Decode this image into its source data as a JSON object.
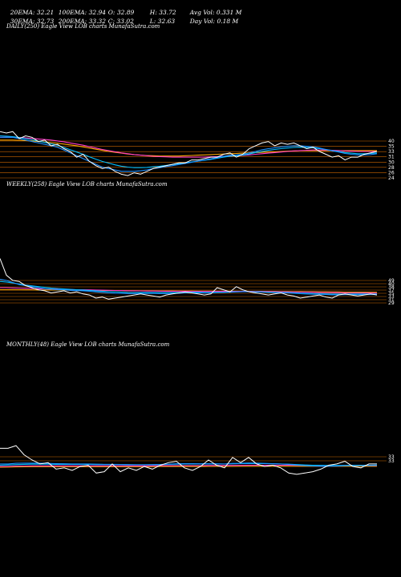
{
  "header": {
    "row1": {
      "ema20": "20EMA: 32.21",
      "ema100": "100EMA: 32.94",
      "open": "O: 32.89",
      "high": "H: 33.72",
      "avgvol": "Avg Vol: 0.331 M"
    },
    "row2": {
      "ema30": "30EMA: 32.73",
      "ema200": "200EMA: 33.32",
      "close": "C: 33.02",
      "low": "L: 32.63",
      "dayvol": "Day Vol: 0.18 M"
    }
  },
  "panels": {
    "daily_label": "DAILY(250) Eagle   View  LOB charts MunafaSutra.com",
    "weekly_label": "WEEKLY(258) Eagle   View  LOB charts MunafaSutra.com",
    "monthly_label": "MONTHLY(48) Eagle   View  LOB charts MunafaSutra.com"
  },
  "colors": {
    "price": "#ffffff",
    "ema20": "#1e90ff",
    "ema30": "#00bfff",
    "ema100": "#ff3cc8",
    "ema200": "#ffa500",
    "grid": "#cc6600"
  },
  "chart_data": [
    {
      "type": "line",
      "name": "daily",
      "ylim": [
        22,
        44
      ],
      "ticks": [
        "40",
        "35",
        "33",
        "31",
        "30",
        "28",
        "26",
        "24"
      ],
      "series": [
        {
          "name": "price",
          "values": [
            40,
            39.5,
            40,
            37.5,
            38.5,
            38,
            36.5,
            37,
            35,
            35.5,
            34,
            33,
            31,
            32,
            29.5,
            28,
            27,
            27.5,
            26,
            25,
            24.5,
            25.5,
            25,
            26,
            27,
            27.5,
            28,
            28.5,
            29,
            29,
            30,
            30,
            30.5,
            31,
            31,
            32,
            32.5,
            31,
            32,
            34,
            35,
            36,
            36.5,
            35,
            36,
            35.5,
            36,
            35,
            34,
            34.5,
            33,
            32,
            31,
            31.5,
            30,
            31,
            31,
            32,
            32.5,
            33
          ]
        },
        {
          "name": "ema20",
          "values": [
            38,
            38,
            38,
            37.5,
            37,
            36.5,
            36,
            35.5,
            35,
            34.5,
            33.5,
            32.5,
            31.5,
            30.5,
            29.5,
            28.5,
            27.5,
            27,
            26.5,
            26,
            26,
            26,
            26.2,
            26.5,
            27,
            27.3,
            27.7,
            28,
            28.4,
            28.8,
            29.2,
            29.6,
            30,
            30.4,
            30.8,
            31.3,
            31.7,
            31.8,
            32,
            32.5,
            33,
            33.6,
            34,
            34.3,
            34.6,
            34.8,
            35,
            35,
            34.8,
            34.6,
            34.2,
            33.7,
            33.2,
            32.8,
            32.3,
            32,
            31.8,
            31.8,
            31.9,
            32.2
          ]
        },
        {
          "name": "ema30",
          "values": [
            38.5,
            38.4,
            38.2,
            37.9,
            37.5,
            37.1,
            36.6,
            36.2,
            35.7,
            35.2,
            34.4,
            33.6,
            32.8,
            32,
            31.1,
            30.3,
            29.5,
            28.9,
            28.3,
            27.8,
            27.5,
            27.3,
            27.3,
            27.4,
            27.6,
            27.8,
            28.1,
            28.4,
            28.7,
            29,
            29.3,
            29.6,
            29.9,
            30.2,
            30.6,
            31,
            31.3,
            31.5,
            31.7,
            32.1,
            32.6,
            33,
            33.4,
            33.7,
            34,
            34.2,
            34.4,
            34.5,
            34.4,
            34.3,
            34,
            33.7,
            33.3,
            33,
            32.6,
            32.4,
            32.2,
            32.2,
            32.3,
            32.5
          ]
        },
        {
          "name": "ema100",
          "values": [
            38,
            38,
            38,
            37.9,
            37.8,
            37.6,
            37.4,
            37.2,
            37,
            36.7,
            36.4,
            36,
            35.6,
            35.2,
            34.7,
            34.2,
            33.7,
            33.3,
            32.9,
            32.5,
            32.2,
            31.9,
            31.7,
            31.5,
            31.3,
            31.2,
            31.1,
            31,
            31,
            31,
            31,
            31,
            31,
            31.1,
            31.2,
            31.3,
            31.4,
            31.5,
            31.6,
            31.8,
            32,
            32.2,
            32.4,
            32.6,
            32.8,
            33,
            33.2,
            33.3,
            33.4,
            33.5,
            33.5,
            33.5,
            33.4,
            33.3,
            33.2,
            33.1,
            33,
            33,
            33,
            33
          ]
        },
        {
          "name": "ema200",
          "values": [
            37,
            37,
            37,
            36.9,
            36.8,
            36.7,
            36.5,
            36.3,
            36.1,
            35.9,
            35.6,
            35.3,
            35,
            34.6,
            34.2,
            33.8,
            33.4,
            33,
            32.7,
            32.4,
            32.1,
            31.9,
            31.7,
            31.6,
            31.5,
            31.4,
            31.4,
            31.4,
            31.4,
            31.5,
            31.6,
            31.7,
            31.8,
            31.9,
            32,
            32.1,
            32.2,
            32.3,
            32.4,
            32.5,
            32.6,
            32.7,
            32.8,
            32.9,
            33,
            33.1,
            33.2,
            33.3,
            33.3,
            33.3,
            33.3,
            33.3,
            33.3,
            33.3,
            33.3,
            33.3,
            33.3,
            33.3,
            33.3,
            33.3
          ]
        }
      ]
    },
    {
      "type": "line",
      "name": "weekly",
      "ylim": [
        20,
        70
      ],
      "ticks": [
        "49",
        "40",
        "38",
        "37",
        "35",
        "33",
        "31",
        "29"
      ],
      "series": [
        {
          "name": "price",
          "values": [
            68,
            52,
            47,
            46,
            42,
            40,
            38,
            37,
            35,
            36,
            37,
            35,
            36,
            34,
            33,
            30,
            31,
            29,
            30,
            31,
            32,
            33,
            34,
            33,
            32,
            31,
            33,
            34,
            35,
            36,
            35,
            34,
            33,
            34,
            40,
            38,
            36,
            41,
            38,
            36,
            35,
            34,
            33,
            34,
            35,
            33,
            32,
            30,
            31,
            32,
            33,
            31,
            30,
            33,
            34,
            33,
            32,
            33,
            34,
            33
          ]
        },
        {
          "name": "ema20",
          "values": [
            48,
            47,
            45,
            43,
            42,
            41,
            40,
            39,
            38.5,
            38,
            38,
            37.5,
            37.2,
            37,
            36.6,
            36,
            35.5,
            35,
            34.7,
            34.5,
            34.4,
            34.4,
            34.5,
            34.5,
            34.5,
            34.4,
            34.4,
            34.5,
            34.7,
            35,
            35,
            35,
            34.9,
            34.9,
            35.3,
            35.5,
            35.6,
            36,
            36.2,
            36.2,
            36,
            35.8,
            35.5,
            35.3,
            35.2,
            35,
            34.7,
            34.3,
            34,
            33.8,
            33.7,
            33.5,
            33.2,
            33.2,
            33.3,
            33.3,
            33.3,
            33.3,
            33.4,
            33.4
          ]
        },
        {
          "name": "ema30",
          "values": [
            46,
            45.5,
            44.5,
            43.5,
            42.5,
            41.8,
            41,
            40.3,
            39.7,
            39.2,
            38.8,
            38.4,
            38.1,
            37.8,
            37.4,
            37,
            36.6,
            36.2,
            35.9,
            35.7,
            35.5,
            35.4,
            35.4,
            35.4,
            35.4,
            35.3,
            35.3,
            35.4,
            35.5,
            35.6,
            35.6,
            35.6,
            35.5,
            35.5,
            35.7,
            35.8,
            35.9,
            36.1,
            36.2,
            36.2,
            36.1,
            36,
            35.8,
            35.6,
            35.5,
            35.3,
            35.1,
            34.8,
            34.6,
            34.4,
            34.3,
            34.1,
            33.9,
            33.9,
            33.9,
            33.9,
            33.9,
            33.9,
            33.9,
            33.9
          ]
        },
        {
          "name": "ema100",
          "values": [
            40,
            40,
            39.8,
            39.6,
            39.4,
            39.2,
            39,
            38.8,
            38.6,
            38.4,
            38.3,
            38.2,
            38.1,
            38,
            37.9,
            37.8,
            37.6,
            37.5,
            37.3,
            37.2,
            37.1,
            37,
            36.9,
            36.8,
            36.8,
            36.7,
            36.6,
            36.6,
            36.6,
            36.6,
            36.5,
            36.5,
            36.5,
            36.5,
            36.5,
            36.5,
            36.5,
            36.5,
            36.5,
            36.5,
            36.4,
            36.4,
            36.3,
            36.2,
            36.1,
            36,
            35.9,
            35.8,
            35.7,
            35.6,
            35.5,
            35.4,
            35.3,
            35.2,
            35.1,
            35,
            35,
            34.9,
            34.9,
            34.8
          ]
        },
        {
          "name": "ema200",
          "values": [
            38,
            38,
            38,
            38,
            37.9,
            37.9,
            37.8,
            37.8,
            37.7,
            37.7,
            37.6,
            37.6,
            37.5,
            37.5,
            37.4,
            37.4,
            37.3,
            37.3,
            37.2,
            37.2,
            37.1,
            37.1,
            37,
            37,
            37,
            36.9,
            36.9,
            36.9,
            36.8,
            36.8,
            36.8,
            36.7,
            36.7,
            36.7,
            36.6,
            36.6,
            36.6,
            36.6,
            36.5,
            36.5,
            36.5,
            36.4,
            36.4,
            36.4,
            36.3,
            36.3,
            36.2,
            36.2,
            36.1,
            36.1,
            36,
            36,
            35.9,
            35.9,
            35.8,
            35.8,
            35.7,
            35.7,
            35.6,
            35.6
          ]
        }
      ]
    },
    {
      "type": "line",
      "name": "monthly",
      "ylim": [
        20,
        60
      ],
      "ticks": [
        "33",
        "33"
      ],
      "series": [
        {
          "name": "price",
          "values": [
            45,
            45,
            47,
            40,
            36,
            33,
            34,
            29,
            30,
            28,
            31,
            32,
            26,
            27,
            33,
            27,
            30,
            28,
            31,
            29,
            32,
            34,
            35,
            30,
            28,
            31,
            36,
            32,
            30,
            38,
            34,
            38,
            33,
            31,
            32,
            30,
            26,
            25,
            26,
            27,
            29,
            32,
            33,
            35,
            31,
            30,
            33,
            33
          ]
        },
        {
          "name": "ema20",
          "values": [
            33,
            33,
            33.5,
            33.6,
            33.6,
            33.5,
            33.4,
            33.2,
            33.1,
            33,
            33,
            33,
            32.8,
            32.7,
            32.7,
            32.6,
            32.5,
            32.4,
            32.4,
            32.5,
            32.6,
            32.8,
            33.1,
            33.2,
            33.2,
            33.1,
            33.2,
            33.1,
            33,
            33.4,
            33.5,
            33.7,
            33.6,
            33.4,
            33.2,
            33,
            32.6,
            32.1,
            31.7,
            31.4,
            31.2,
            31.2,
            31.3,
            31.6,
            31.7,
            31.7,
            31.8,
            31.9
          ]
        },
        {
          "name": "ema30",
          "values": [
            32,
            32.2,
            32.5,
            32.7,
            32.8,
            32.8,
            32.8,
            32.7,
            32.7,
            32.6,
            32.6,
            32.6,
            32.5,
            32.5,
            32.5,
            32.5,
            32.4,
            32.4,
            32.4,
            32.4,
            32.5,
            32.6,
            32.8,
            32.9,
            32.9,
            32.9,
            33,
            33,
            32.9,
            33.1,
            33.2,
            33.3,
            33.3,
            33.2,
            33.1,
            33,
            32.8,
            32.5,
            32.2,
            32,
            31.9,
            31.8,
            31.8,
            31.9,
            32,
            32,
            32,
            32.1
          ]
        },
        {
          "name": "ema100",
          "values": [
            31,
            31.1,
            31.3,
            31.4,
            31.5,
            31.5,
            31.5,
            31.5,
            31.5,
            31.5,
            31.5,
            31.5,
            31.5,
            31.5,
            31.5,
            31.5,
            31.5,
            31.5,
            31.5,
            31.5,
            31.6,
            31.6,
            31.7,
            31.7,
            31.7,
            31.7,
            31.8,
            31.8,
            31.8,
            31.9,
            31.9,
            32,
            32,
            32,
            32,
            32,
            32,
            31.9,
            31.8,
            31.8,
            31.7,
            31.7,
            31.7,
            31.7,
            31.7,
            31.7,
            31.7,
            31.7
          ]
        },
        {
          "name": "ema200",
          "values": [
            30.5,
            30.6,
            30.7,
            30.8,
            30.9,
            30.9,
            30.9,
            30.9,
            30.9,
            30.9,
            30.9,
            30.9,
            30.9,
            30.9,
            30.9,
            30.9,
            30.9,
            30.9,
            30.9,
            30.9,
            31,
            31,
            31,
            31,
            31,
            31,
            31.1,
            31.1,
            31.1,
            31.1,
            31.2,
            31.2,
            31.2,
            31.2,
            31.2,
            31.2,
            31.2,
            31.2,
            31.2,
            31.2,
            31.2,
            31.2,
            31.2,
            31.2,
            31.2,
            31.2,
            31.2,
            31.2
          ]
        }
      ]
    }
  ]
}
